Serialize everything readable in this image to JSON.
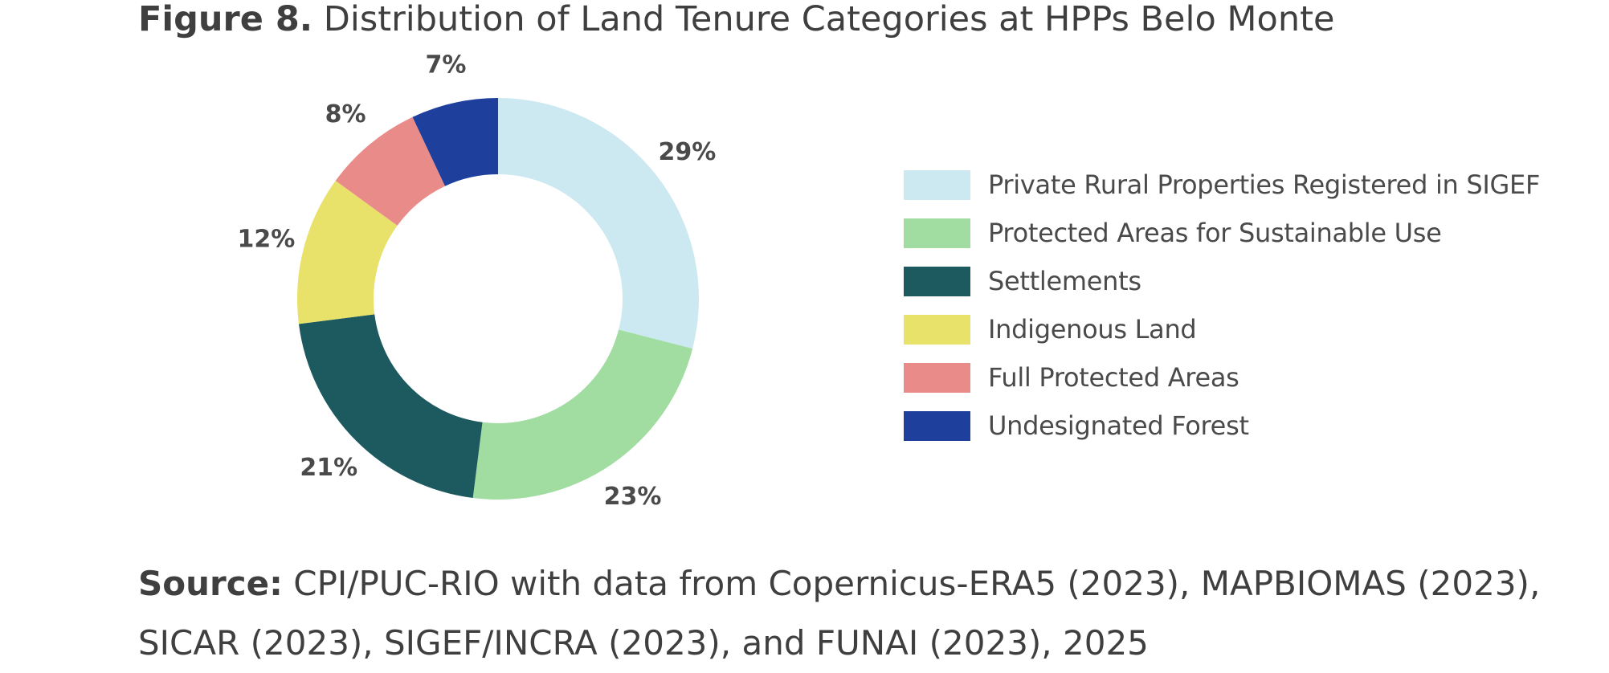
{
  "title": {
    "lead": "Figure 8.",
    "text": "Distribution of Land Tenure Categories at HPPs Belo Monte"
  },
  "source": {
    "lead": "Source:",
    "text": "CPI/PUC-RIO with data from Copernicus-ERA5 (2023), MAPBIOMAS (2023), SICAR (2023), SIGEF/INCRA (2023), and FUNAI (2023), 2025"
  },
  "chart_data": {
    "type": "pie",
    "variant": "donut",
    "title": "Distribution of Land Tenure Categories at HPPs Belo Monte",
    "legend_position": "right",
    "slices": [
      {
        "name": "Private Rural Properties Registered in SIGEF",
        "value": 29,
        "label": "29%",
        "color": "#cce9f1"
      },
      {
        "name": "Protected Areas for Sustainable Use",
        "value": 23,
        "label": "23%",
        "color": "#a1dca1"
      },
      {
        "name": "Settlements",
        "value": 21,
        "label": "21%",
        "color": "#1c5a5f"
      },
      {
        "name": "Indigenous Land",
        "value": 12,
        "label": "12%",
        "color": "#e8e16a"
      },
      {
        "name": "Full Protected Areas",
        "value": 8,
        "label": "8%",
        "color": "#e98b88"
      },
      {
        "name": "Undesignated Forest",
        "value": 7,
        "label": "7%",
        "color": "#1f3f9c"
      }
    ]
  }
}
